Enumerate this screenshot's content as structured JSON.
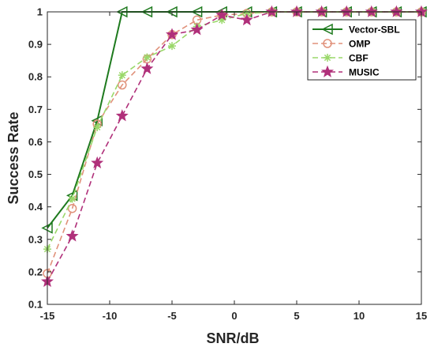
{
  "chart_data": {
    "type": "line",
    "xlabel": "SNR/dB",
    "ylabel": "Success Rate",
    "xlim": [
      -15,
      15
    ],
    "ylim": [
      0.1,
      1
    ],
    "xticks": [
      -15,
      -10,
      -5,
      0,
      5,
      10,
      15
    ],
    "yticks": [
      0.1,
      0.2,
      0.3,
      0.4,
      0.5,
      0.6,
      0.7,
      0.8,
      0.9,
      1
    ],
    "ytick_labels": [
      "0.1",
      "0.2",
      "0.3",
      "0.4",
      "0.5",
      "0.6",
      "0.7",
      "0.8",
      "0.9",
      "1"
    ],
    "grid": false,
    "legend_position": "top-right",
    "x": [
      -15,
      -13,
      -11,
      -9,
      -7,
      -5,
      -3,
      -1,
      1,
      3,
      5,
      7,
      9,
      11,
      13,
      15
    ],
    "series": [
      {
        "name": "Vector-SBL",
        "color": "#1e7a1e",
        "dash": "solid",
        "marker": "triangle-left",
        "values": [
          0.335,
          0.435,
          0.665,
          1,
          1,
          1,
          1,
          1,
          1,
          1,
          1,
          1,
          1,
          1,
          1,
          1
        ]
      },
      {
        "name": "OMP",
        "color": "#e0917a",
        "dash": "dashed",
        "marker": "circle",
        "values": [
          0.195,
          0.395,
          0.655,
          0.775,
          0.855,
          0.93,
          0.975,
          0.99,
          0.995,
          1,
          1,
          1,
          1,
          1,
          1,
          1
        ]
      },
      {
        "name": "CBF",
        "color": "#9ad86a",
        "dash": "dashed",
        "marker": "asterisk",
        "values": [
          0.27,
          0.425,
          0.645,
          0.805,
          0.86,
          0.895,
          0.955,
          0.975,
          0.995,
          1,
          1,
          1,
          1,
          1,
          1,
          1
        ]
      },
      {
        "name": "MUSIC",
        "color": "#b0307a",
        "dash": "dashed",
        "marker": "star",
        "values": [
          0.17,
          0.31,
          0.535,
          0.68,
          0.825,
          0.93,
          0.945,
          0.99,
          0.975,
          1,
          1,
          1,
          1,
          1,
          1,
          1
        ]
      }
    ]
  }
}
